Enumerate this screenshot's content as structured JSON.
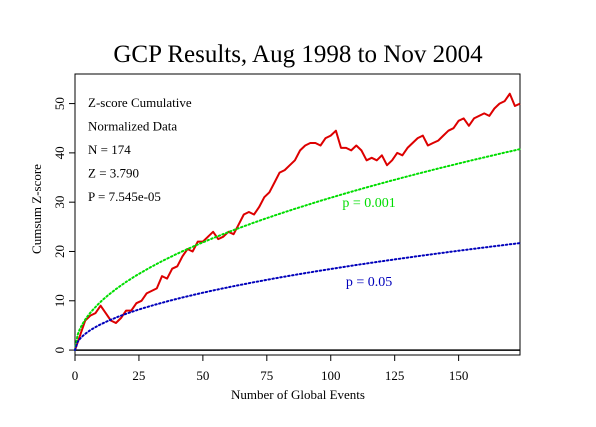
{
  "chart_data": {
    "type": "line",
    "title": "GCP Results, Aug 1998 to Nov 2004",
    "xlabel": "Number of Global Events",
    "ylabel": "Cumsum Z-score",
    "xlim": [
      0,
      174
    ],
    "ylim": [
      -1,
      56
    ],
    "xticks": [
      0,
      25,
      50,
      75,
      100,
      125,
      150
    ],
    "yticks": [
      0,
      10,
      20,
      30,
      40,
      50
    ],
    "grid": false,
    "stats": [
      "Z-score Cumulative",
      "Normalized Data",
      "N = 174",
      "Z = 3.790",
      "P = 7.545e-05"
    ],
    "series": [
      {
        "name": "",
        "color": "#dd0000",
        "style": "solid",
        "x": [
          0,
          2,
          4,
          6,
          8,
          10,
          12,
          14,
          16,
          18,
          20,
          22,
          24,
          26,
          28,
          30,
          32,
          34,
          36,
          38,
          40,
          42,
          44,
          46,
          48,
          50,
          52,
          54,
          56,
          58,
          60,
          62,
          64,
          66,
          68,
          70,
          72,
          74,
          76,
          78,
          80,
          82,
          84,
          86,
          88,
          90,
          92,
          94,
          96,
          98,
          100,
          102,
          104,
          106,
          108,
          110,
          112,
          114,
          116,
          118,
          120,
          122,
          124,
          126,
          128,
          130,
          132,
          134,
          136,
          138,
          140,
          142,
          144,
          146,
          148,
          150,
          152,
          154,
          156,
          158,
          160,
          162,
          164,
          166,
          168,
          170,
          172,
          174
        ],
        "values": [
          0,
          3,
          6,
          7,
          7.5,
          9,
          7.5,
          6,
          5.5,
          6.5,
          8,
          8,
          9.5,
          10,
          11.5,
          12,
          12.5,
          15,
          14.5,
          16.5,
          17,
          19,
          20.5,
          20,
          22,
          22,
          23,
          24,
          22.5,
          23,
          24,
          23.5,
          25.5,
          27.5,
          28,
          27.5,
          29,
          31,
          32,
          34,
          36,
          36.5,
          37.5,
          38.5,
          40.5,
          41.5,
          42,
          42,
          41.5,
          43,
          43.5,
          44.5,
          41,
          41,
          40.5,
          41.5,
          40.5,
          38.5,
          39,
          38.5,
          39.5,
          37.5,
          38.5,
          40,
          39.5,
          41,
          42,
          43,
          43.5,
          41.5,
          42,
          42.5,
          43.5,
          44.5,
          45,
          46.5,
          47,
          45.5,
          47,
          47.5,
          48,
          47.5,
          49,
          50,
          50.5,
          52,
          49.5,
          50
        ]
      },
      {
        "name": "p = 0.001",
        "color": "#00dd00",
        "style": "dotted",
        "formula_k": 3.09
      },
      {
        "name": "p = 0.05",
        "color": "#0000bb",
        "style": "dotted",
        "formula_k": 1.645
      }
    ],
    "curve_labels": [
      {
        "text": "p = 0.001",
        "x": 115,
        "y": 29,
        "color": "#00dd00"
      },
      {
        "text": "p = 0.05",
        "x": 115,
        "y": 13,
        "color": "#0000bb"
      }
    ]
  }
}
